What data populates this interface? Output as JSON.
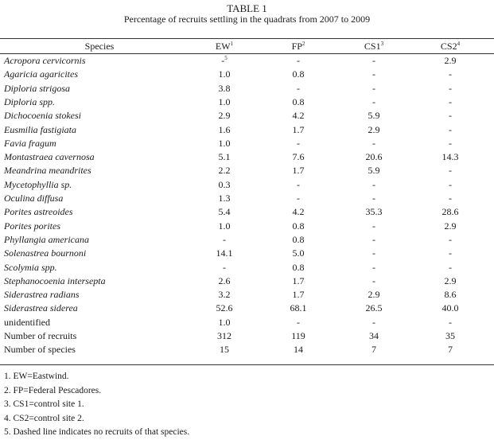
{
  "table": {
    "label": "TABLE 1",
    "caption": "Percentage of recruits settling in the quadrats from 2007 to 2009",
    "headers": {
      "species": "Species",
      "ew": "EW",
      "ew_sup": "1",
      "fp": "FP",
      "fp_sup": "2",
      "cs1": "CS1",
      "cs1_sup": "3",
      "cs2": "CS2",
      "cs2_sup": "4"
    },
    "rows": [
      {
        "species": "Acropora cervicornis",
        "italic": true,
        "ew": "-",
        "ew_sup": "5",
        "fp": "-",
        "cs1": "-",
        "cs2": "2.9"
      },
      {
        "species": "Agaricia agaricites",
        "italic": true,
        "ew": "1.0",
        "fp": "0.8",
        "cs1": "-",
        "cs2": "-"
      },
      {
        "species": "Diploria strigosa",
        "italic": true,
        "ew": "3.8",
        "fp": "-",
        "cs1": "-",
        "cs2": "-"
      },
      {
        "species": "Diploria spp.",
        "italic": true,
        "ew": "1.0",
        "fp": "0.8",
        "cs1": "-",
        "cs2": "-"
      },
      {
        "species": "Dichocoenia stokesi",
        "italic": true,
        "ew": "2.9",
        "fp": "4.2",
        "cs1": "5.9",
        "cs2": "-"
      },
      {
        "species": "Eusmilia fastigiata",
        "italic": true,
        "ew": "1.6",
        "fp": "1.7",
        "cs1": "2.9",
        "cs2": "-"
      },
      {
        "species": "Favia fragum",
        "italic": true,
        "ew": "1.0",
        "fp": "-",
        "cs1": "-",
        "cs2": "-"
      },
      {
        "species": "Montastraea cavernosa",
        "italic": true,
        "ew": "5.1",
        "fp": "7.6",
        "cs1": "20.6",
        "cs2": "14.3"
      },
      {
        "species": "Meandrina meandrites",
        "italic": true,
        "ew": "2.2",
        "fp": "1.7",
        "cs1": "5.9",
        "cs2": "-"
      },
      {
        "species": "Mycetophyllia sp.",
        "italic": true,
        "ew": "0.3",
        "fp": "-",
        "cs1": "-",
        "cs2": "-"
      },
      {
        "species": "Oculina diffusa",
        "italic": true,
        "ew": "1.3",
        "fp": "-",
        "cs1": "-",
        "cs2": "-"
      },
      {
        "species": "Porites astreoides",
        "italic": true,
        "ew": "5.4",
        "fp": "4.2",
        "cs1": "35.3",
        "cs2": "28.6"
      },
      {
        "species": "Porites porites",
        "italic": true,
        "ew": "1.0",
        "fp": "0.8",
        "cs1": "-",
        "cs2": "2.9"
      },
      {
        "species": "Phyllangia americana",
        "italic": true,
        "ew": "-",
        "fp": "0.8",
        "cs1": "-",
        "cs2": "-"
      },
      {
        "species": "Solenastrea bournoni",
        "italic": true,
        "ew": "14.1",
        "fp": "5.0",
        "cs1": "-",
        "cs2": "-"
      },
      {
        "species": "Scolymia spp.",
        "italic": true,
        "ew": "-",
        "fp": "0.8",
        "cs1": "-",
        "cs2": "-"
      },
      {
        "species": "Stephanocoenia intersepta",
        "italic": true,
        "ew": "2.6",
        "fp": "1.7",
        "cs1": "-",
        "cs2": "2.9"
      },
      {
        "species": "Siderastrea radians",
        "italic": true,
        "ew": "3.2",
        "fp": "1.7",
        "cs1": "2.9",
        "cs2": "8.6"
      },
      {
        "species": "Siderastrea siderea",
        "italic": true,
        "ew": "52.6",
        "fp": "68.1",
        "cs1": "26.5",
        "cs2": "40.0"
      },
      {
        "species": "unidentified",
        "italic": false,
        "ew": "1.0",
        "fp": "-",
        "cs1": "-",
        "cs2": "-"
      },
      {
        "species": "Number of recruits",
        "italic": false,
        "ew": "312",
        "fp": "119",
        "cs1": "34",
        "cs2": "35"
      },
      {
        "species": "Number of species",
        "italic": false,
        "ew": "15",
        "fp": "14",
        "cs1": "7",
        "cs2": "7"
      }
    ],
    "footnotes": [
      "1.  EW=Eastwind.",
      "2.  FP=Federal Pescadores.",
      "3.  CS1=control site 1.",
      "4.  CS2=control site 2.",
      "5.  Dashed line indicates no recruits of that species."
    ]
  }
}
